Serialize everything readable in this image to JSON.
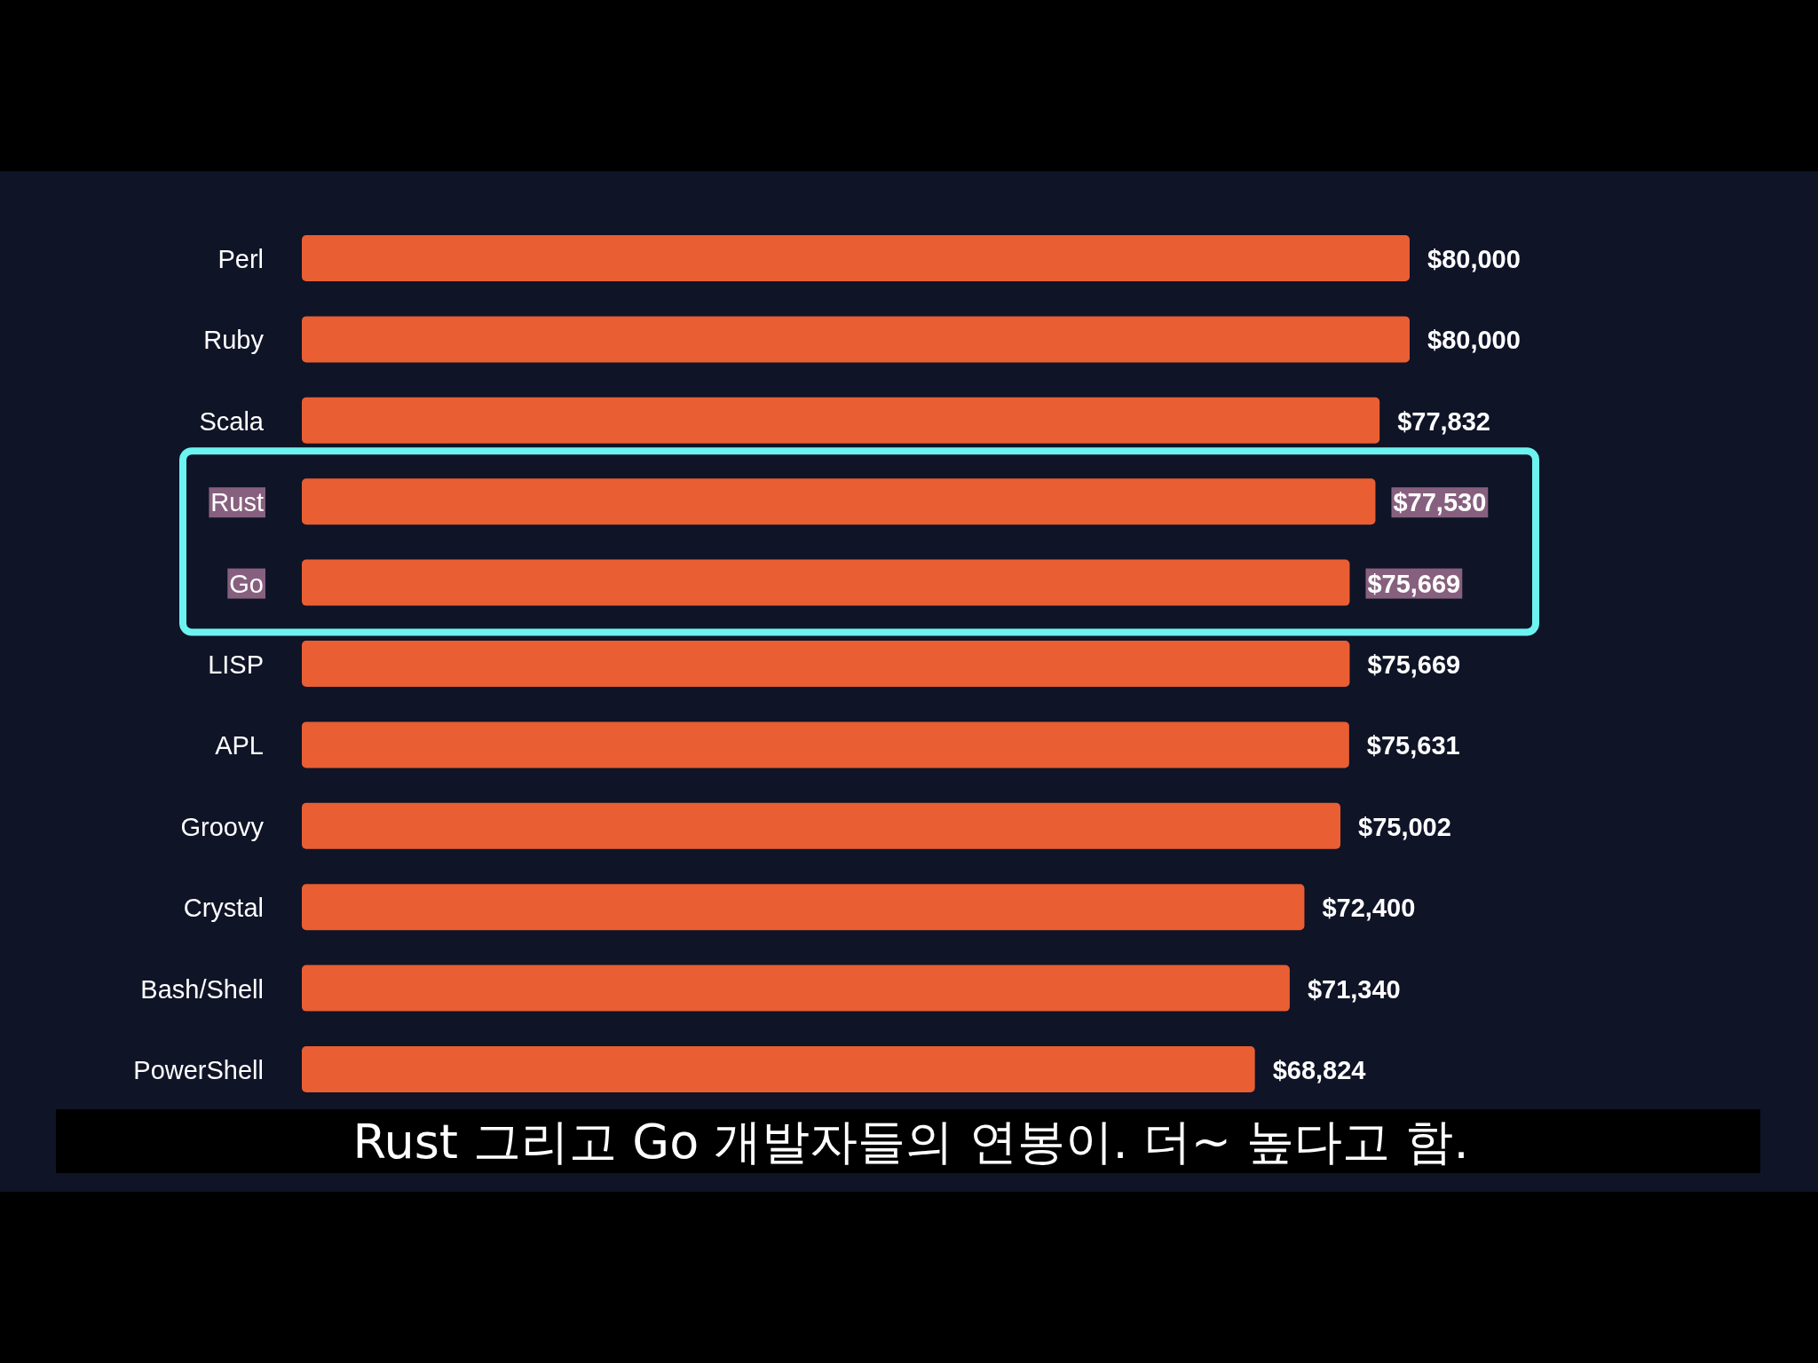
{
  "chart_data": {
    "type": "bar",
    "orientation": "horizontal",
    "categories": [
      "Perl",
      "Ruby",
      "Scala",
      "Rust",
      "Go",
      "LISP",
      "APL",
      "Groovy",
      "Crystal",
      "Bash/Shell",
      "PowerShell"
    ],
    "values": [
      80000,
      80000,
      77832,
      77530,
      75669,
      75669,
      75631,
      75002,
      72400,
      71340,
      68824
    ],
    "value_labels": [
      "$80,000",
      "$80,000",
      "$77,832",
      "$77,530",
      "$75,669",
      "$75,669",
      "$75,631",
      "$75,002",
      "$72,400",
      "$71,340",
      "$68,824"
    ],
    "color": "#e95e33",
    "tick_labels": "y",
    "annotations": [
      "Rust 그리고 Go 개발자들의 연봉이. 더~ 높다고 함."
    ]
  }
}
